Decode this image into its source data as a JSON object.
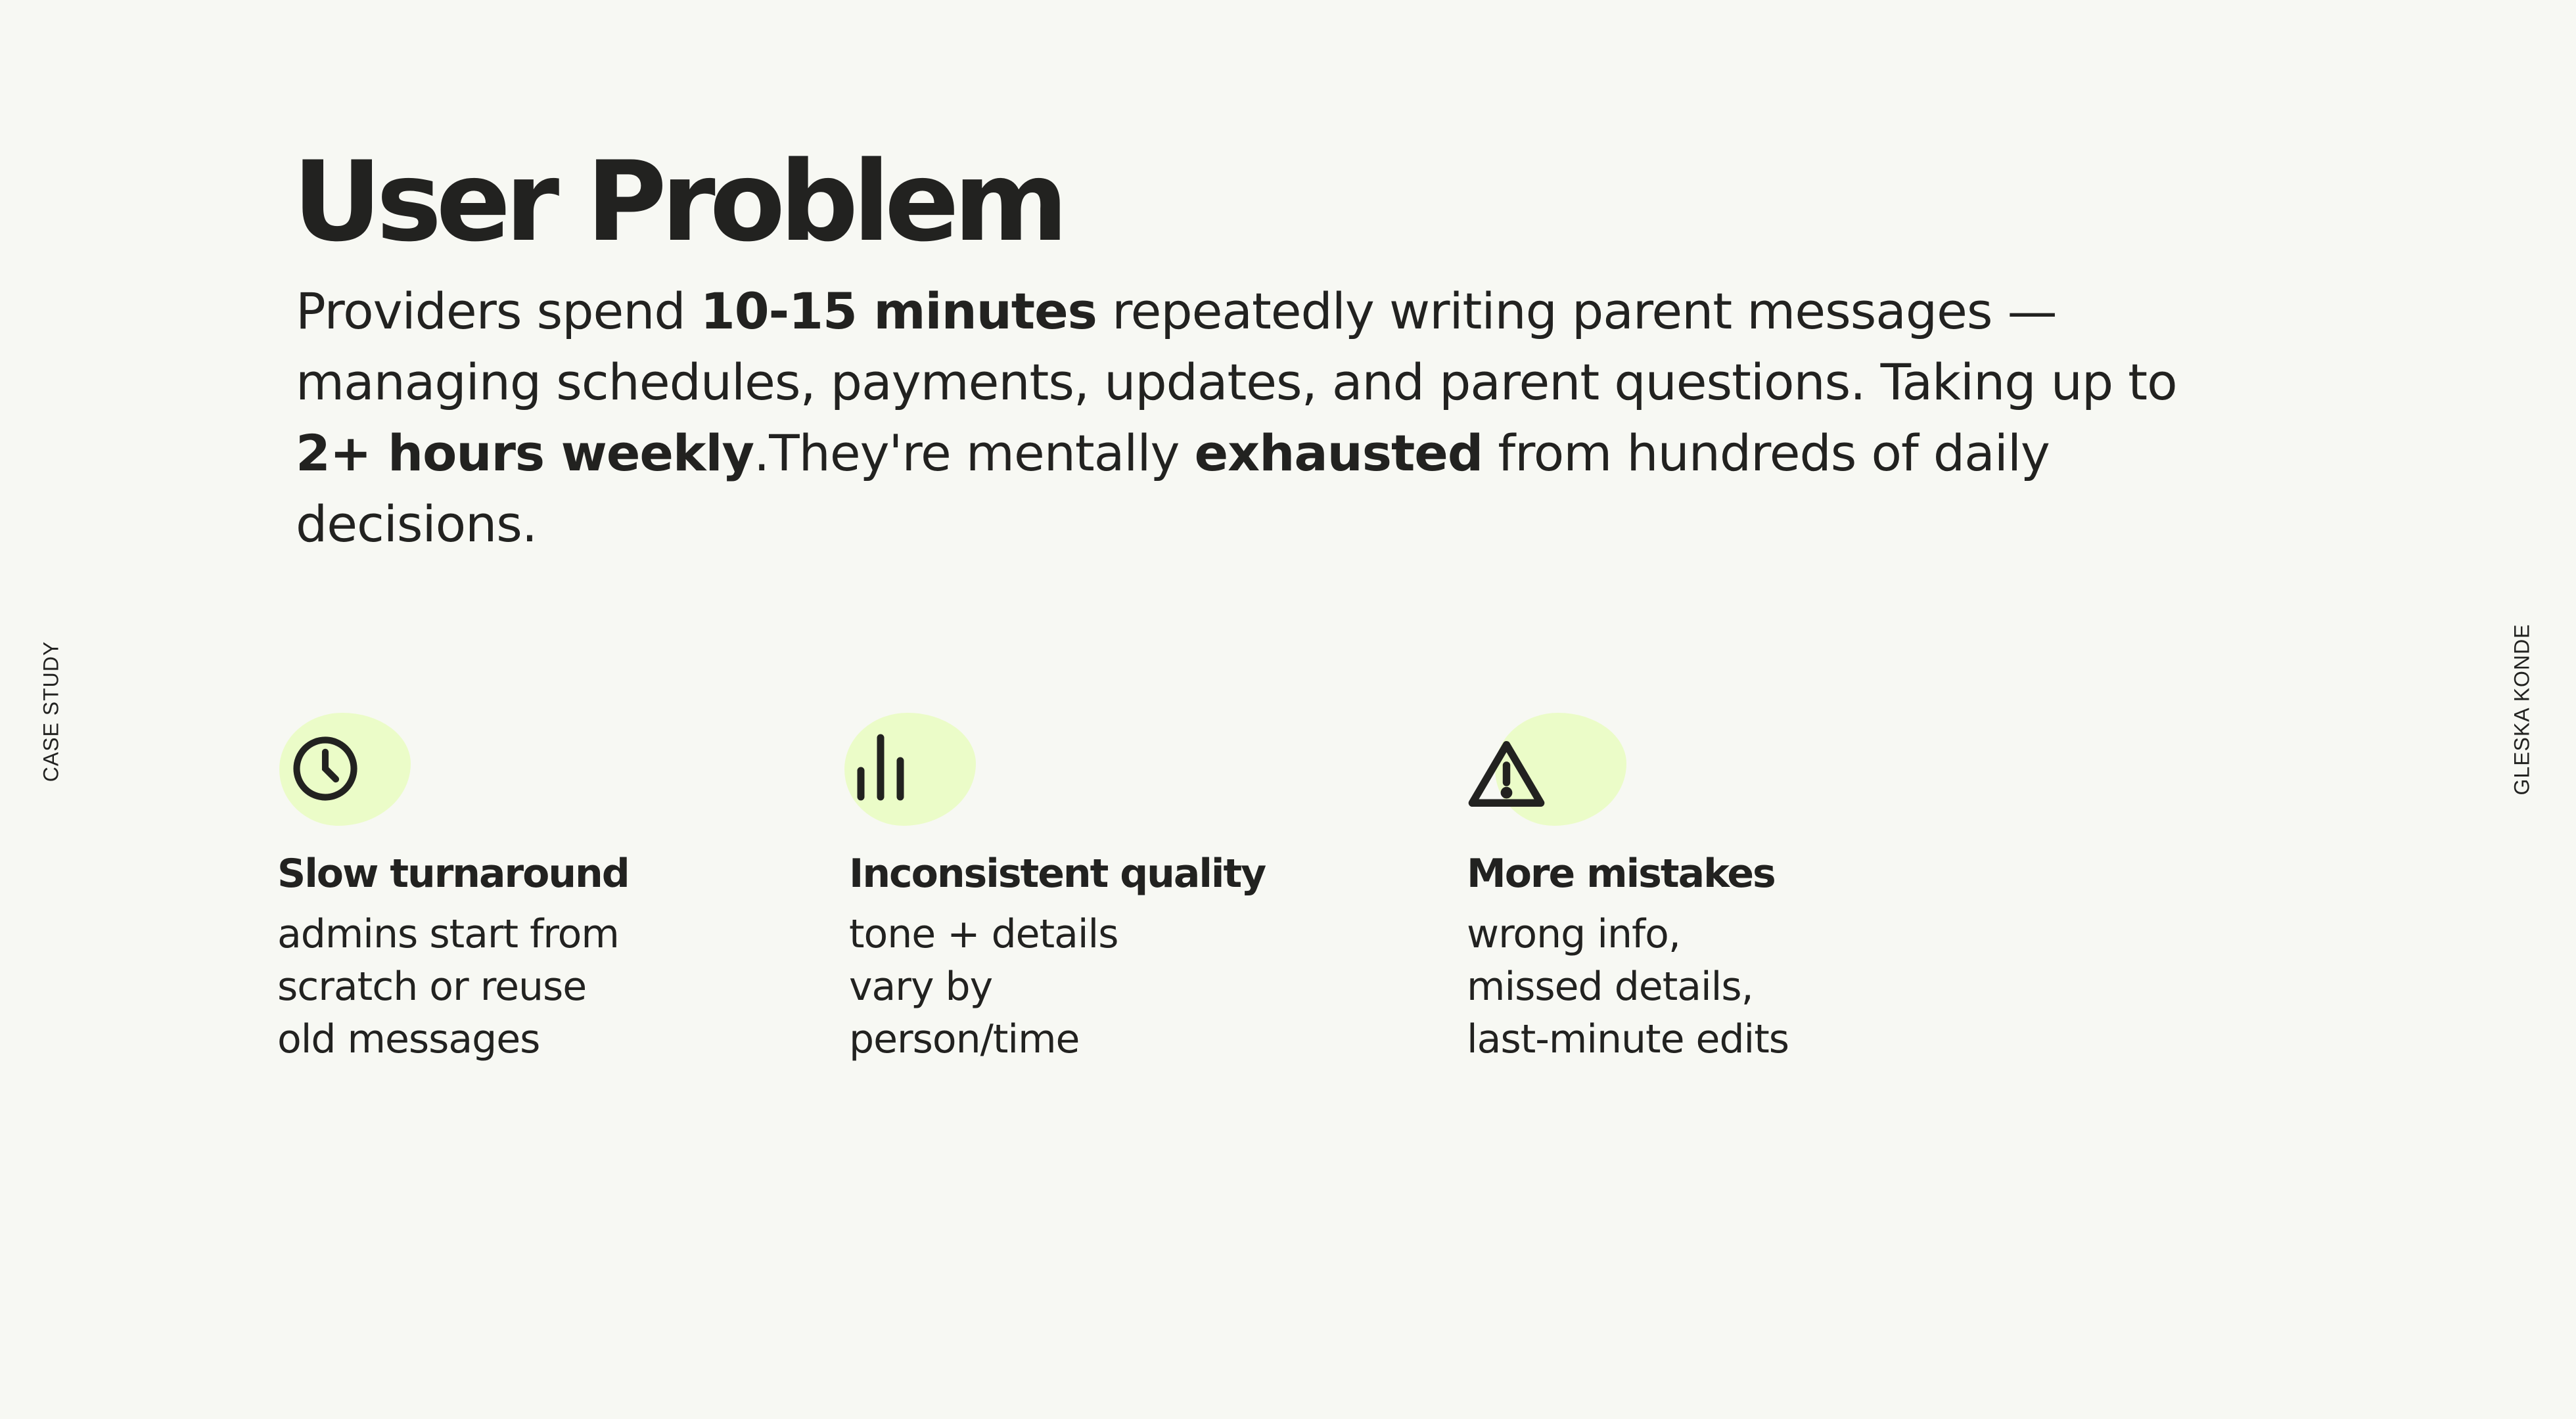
{
  "side_left": "CASE STUDY",
  "side_right": "GLESKA KONDE",
  "title": "User Problem",
  "intro": {
    "p1": "Providers spend ",
    "b1": "10-15 minutes",
    "p2": " repeatedly writing parent messages — managing schedules, payments, updates, and parent questions. Taking up to ",
    "b2": "2+ hours weekly",
    "p3": ".They're mentally ",
    "b3": "exhausted",
    "p4": " from hundreds of daily decisions."
  },
  "accent_color": "#ebfcc8",
  "cards": [
    {
      "icon": "clock-icon",
      "title": "Slow turnaround",
      "lines": [
        "admins start from",
        "scratch or reuse",
        "old messages"
      ]
    },
    {
      "icon": "bar-chart-icon",
      "title": "Inconsistent quality",
      "lines": [
        "tone + details",
        "vary by",
        "person/time"
      ]
    },
    {
      "icon": "warning-icon",
      "title": "More mistakes",
      "lines": [
        "wrong info,",
        "missed details,",
        "last-minute edits"
      ]
    }
  ]
}
